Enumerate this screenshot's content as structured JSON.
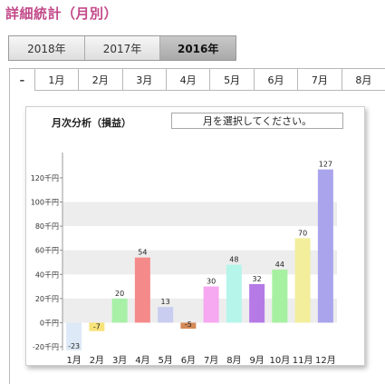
{
  "page": {
    "title": "詳細統計（月別）"
  },
  "year_tabs": [
    {
      "label": "2018年",
      "active": false
    },
    {
      "label": "2017年",
      "active": false
    },
    {
      "label": "2016年",
      "active": true
    }
  ],
  "month_tabs": {
    "collapse_label": "–",
    "items": [
      "1月",
      "2月",
      "3月",
      "4月",
      "5月",
      "6月",
      "7月",
      "8月"
    ]
  },
  "card": {
    "title": "月次分析（損益）",
    "select_label": "月を選択してください。"
  },
  "chart_data": {
    "type": "bar",
    "categories": [
      "1月",
      "2月",
      "3月",
      "4月",
      "5月",
      "6月",
      "7月",
      "8月",
      "9月",
      "10月",
      "11月",
      "12月"
    ],
    "values": [
      -23,
      -7,
      20,
      54,
      13,
      -5,
      30,
      48,
      32,
      44,
      70,
      127
    ],
    "colors": [
      "#dde9f6",
      "#f7e37a",
      "#a8f0a8",
      "#f58a8a",
      "#c9cdef",
      "#d48a56",
      "#f6a8f0",
      "#b5f5ea",
      "#b67ae6",
      "#a6f0a2",
      "#f2ee9c",
      "#a9a4ec"
    ],
    "y_ticks": [
      "-20千円",
      "0千円",
      "20千円",
      "40千円",
      "60千円",
      "80千円",
      "100千円",
      "120千円"
    ],
    "y_tick_values": [
      -20,
      0,
      20,
      40,
      60,
      80,
      100,
      120
    ],
    "ylim": [
      -23,
      135
    ],
    "grid": "banded"
  }
}
